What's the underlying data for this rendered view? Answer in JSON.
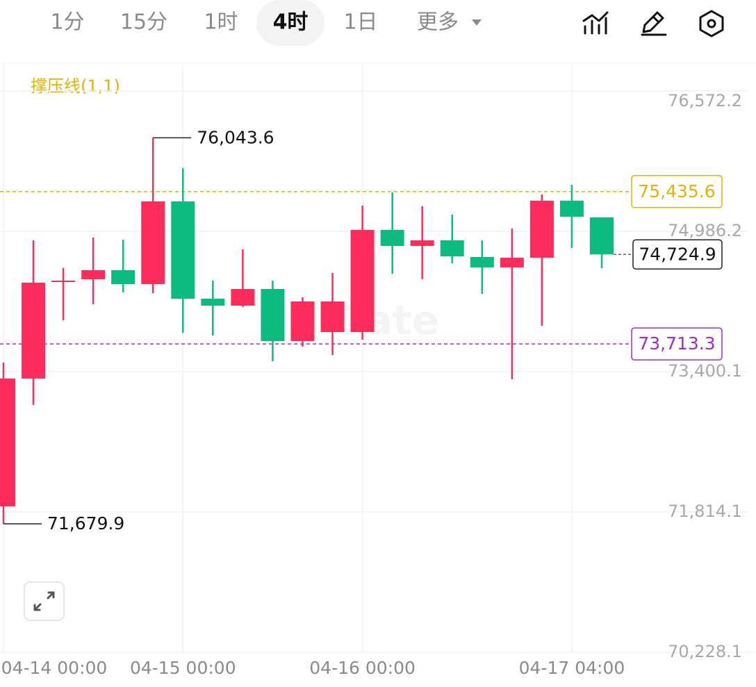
{
  "toolbar": {
    "tabs": [
      "1分",
      "15分",
      "1时",
      "4时",
      "1日",
      "更多"
    ],
    "active_tab": 3
  },
  "chart_data": {
    "type": "candlestick",
    "indicator_label": "撑压线(1,1)",
    "indicator_color": "#e8b100",
    "watermark": "Gate",
    "categories": [
      "04-14 00:00",
      null,
      null,
      null,
      null,
      null,
      "04-15 00:00",
      null,
      null,
      null,
      null,
      null,
      "04-16 00:00",
      null,
      null,
      null,
      null,
      null,
      null,
      "04-17 04:00",
      null
    ],
    "open": [
      71876.9,
      73321.6,
      74413.0,
      74444.4,
      74546.5,
      74389.5,
      75323.8,
      74224.6,
      74146.1,
      74334.5,
      73745.6,
      73847.7,
      73847.7,
      75001.9,
      74821.3,
      74884.1,
      74695.7,
      74577.9,
      74687.8,
      75331.7,
      75143.2
    ],
    "high": [
      73502.2,
      74884.1,
      74570.1,
      74915.5,
      74892.0,
      76043.6,
      75700.7,
      74428.7,
      74782.1,
      74428.7,
      74240.3,
      74515.1,
      75276.7,
      75425.9,
      75268.9,
      75174.6,
      74884.1,
      75017.6,
      75402.3,
      75512.3,
      75143.2
    ],
    "low": [
      71679.9,
      73023.2,
      73981.2,
      74161.8,
      74295.2,
      74287.4,
      73839.8,
      73808.4,
      74130.4,
      73517.9,
      73682.8,
      73588.6,
      73761.3,
      74507.2,
      74444.4,
      74625.0,
      74279.5,
      73313.8,
      73918.4,
      74797.8,
      74570.1
    ],
    "close": [
      73321.6,
      74405.2,
      74428.7,
      74546.5,
      74389.5,
      75323.8,
      74224.6,
      74146.1,
      74334.5,
      73745.6,
      74193.2,
      74193.2,
      75001.9,
      74821.3,
      74884.1,
      74703.5,
      74577.9,
      74687.8,
      75331.7,
      75151.1,
      74724.9
    ],
    "up_color": "#fe2c5a",
    "down_color": "#0bbb80",
    "ylim": [
      70228.1,
      76878.5
    ],
    "yticks": [
      {
        "value": 70228.1,
        "label": "70,228.1"
      },
      {
        "value": 71814.1,
        "label": "71,814.1"
      },
      {
        "value": 73400.1,
        "label": "73,400.1"
      },
      {
        "value": 74986.2,
        "label": "74,986.2"
      },
      {
        "value": 76572.2,
        "label": "76,572.2"
      }
    ],
    "grid": true,
    "extremes": [
      {
        "value": 76043.6,
        "label": "76,043.6"
      },
      {
        "value": 71679.9,
        "label": "71,679.9"
      }
    ],
    "reference_lines": [
      {
        "value": 75435.6,
        "label": "75,435.6",
        "color": "#e8b100"
      },
      {
        "value": 73713.3,
        "label": "73,713.3",
        "color": "#a42bc4"
      }
    ],
    "last_price": {
      "value": 74724.9,
      "label": "74,724.9"
    }
  }
}
